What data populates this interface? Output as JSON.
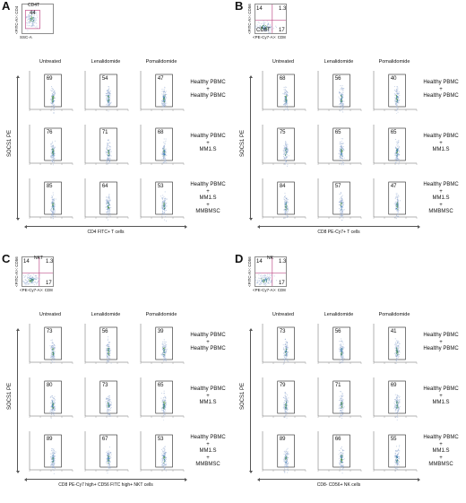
{
  "panels": [
    {
      "label": "A",
      "gate": {
        "title": "CD4T",
        "x_axis": "SSC-A",
        "y_axis": "<FITC-A>: CD4",
        "numbers": [
          "44"
        ],
        "quad": false
      },
      "columns": [
        "Untreated",
        "Lenalidomide",
        "Pomalidomide"
      ],
      "rows": [
        {
          "label": [
            "Healthy PBMC",
            "+",
            "Healthy PBMC"
          ],
          "values": [
            "69",
            "54",
            "47"
          ]
        },
        {
          "label": [
            "Healthy PBMC",
            "+",
            "MM1.S"
          ],
          "values": [
            "76",
            "71",
            "68"
          ]
        },
        {
          "label": [
            "Healthy PBMC",
            "+",
            "MM1.S",
            "+",
            "MMBMSC"
          ],
          "values": [
            "85",
            "64",
            "53"
          ]
        }
      ],
      "y_label": "SOCS1 PE",
      "x_label": "CD4 FITC+ T cells"
    },
    {
      "label": "B",
      "gate": {
        "title": "",
        "x_axis": "<PE-Cy7-A>: CD8",
        "y_axis": "<FITC-A>: CD56",
        "numbers": [
          "14",
          "1.3",
          "CD8T",
          "17"
        ],
        "quad": true
      },
      "columns": [
        "Untreated",
        "Lenalidomide",
        "Pomalidomide"
      ],
      "rows": [
        {
          "label": [
            "Healthy PBMC",
            "+",
            "Healthy PBMC"
          ],
          "values": [
            "68",
            "56",
            "40"
          ]
        },
        {
          "label": [
            "Healthy PBMC",
            "+",
            "MM1.S"
          ],
          "values": [
            "75",
            "65",
            "65"
          ]
        },
        {
          "label": [
            "Healthy PBMC",
            "+",
            "MM1.S",
            "+",
            "MMBMSC"
          ],
          "values": [
            "84",
            "57",
            "47"
          ]
        }
      ],
      "y_label": "SOCS1 PE",
      "x_label": "CD8 PE-Cy7+ T cells"
    },
    {
      "label": "C",
      "gate": {
        "title": "NKT",
        "x_axis": "<PE-Cy7-A>: CD8",
        "y_axis": "<FITC-A>: CD56",
        "numbers": [
          "14",
          "1.3",
          "",
          "17"
        ],
        "quad": true
      },
      "columns": [
        "Untreated",
        "Lenalidomide",
        "Pomalidomide"
      ],
      "rows": [
        {
          "label": [
            "Healthy PBMC",
            "+",
            "Healthy PBMC"
          ],
          "values": [
            "73",
            "56",
            "39"
          ]
        },
        {
          "label": [
            "Healthy PBMC",
            "+",
            "MM1.S"
          ],
          "values": [
            "80",
            "73",
            "65"
          ]
        },
        {
          "label": [
            "Healthy PBMC",
            "+",
            "MM1.S",
            "+",
            "MMBMSC"
          ],
          "values": [
            "89",
            "67",
            "53"
          ]
        }
      ],
      "y_label": "SOCS1 PE",
      "x_label": "CD8 PE-Cy7 high+ CD56 FITC high+ NKT cells"
    },
    {
      "label": "D",
      "gate": {
        "title": "NK",
        "x_axis": "<PE-Cy7-A>: CD8",
        "y_axis": "<FITC-A>: CD56",
        "numbers": [
          "14",
          "1.3",
          "",
          "17"
        ],
        "quad": true
      },
      "columns": [
        "Untreated",
        "Lenalidomide",
        "Pomalidomide"
      ],
      "rows": [
        {
          "label": [
            "Healthy PBMC",
            "+",
            "Healthy PBMC"
          ],
          "values": [
            "73",
            "56",
            "41"
          ]
        },
        {
          "label": [
            "Healthy PBMC",
            "+",
            "MM1.S"
          ],
          "values": [
            "79",
            "71",
            "69"
          ]
        },
        {
          "label": [
            "Healthy PBMC",
            "+",
            "MM1.S",
            "+",
            "MMBMSC"
          ],
          "values": [
            "89",
            "66",
            "55"
          ]
        }
      ],
      "y_label": "SOCS1 PE",
      "x_label": "CD8- CD56+ NK cells"
    }
  ]
}
